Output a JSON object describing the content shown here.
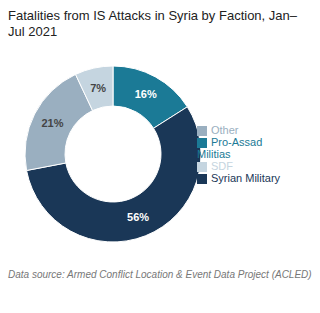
{
  "chart_data": {
    "type": "pie",
    "title": "Fatalities from IS Attacks in Syria by Faction, Jan–Jul 2021",
    "categories": [
      "Pro-Assad Militias",
      "Syrian Military",
      "Other",
      "SDF"
    ],
    "values": [
      16,
      56,
      21,
      7
    ],
    "value_labels": [
      "16%",
      "56%",
      "21%",
      "7%"
    ],
    "colors": [
      "#1b7a96",
      "#1a3757",
      "#9aafc0",
      "#c5d5e0"
    ],
    "data_labels": true,
    "legend": "right",
    "annotations": [
      "Data source: Armed Conflict Location & Event Data Project (ACLED)"
    ]
  }
}
